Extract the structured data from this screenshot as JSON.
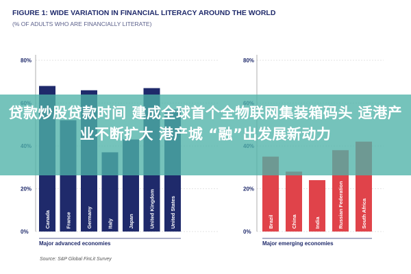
{
  "headline": "贷款炒股贷款时间 建成全球首个全物联网集装箱码头 适港产业不断扩大 港产城 “融”出发展新动力",
  "chart_data": {
    "title": "FIGURE 1: WIDE VARIATION IN FINANCIAL LITERACY AROUND THE WORLD",
    "subtitle": "(% OF ADULTS WHO ARE FINANCIALLY LITERATE)",
    "source": "Source: S&P Global FinLit Survey",
    "type": "bar",
    "ylim": [
      0,
      80
    ],
    "ticks": [
      "0%",
      "20%",
      "40%",
      "60%",
      "80%"
    ],
    "tick_values": [
      0,
      20,
      40,
      60,
      80
    ],
    "colors": {
      "advanced": "#1f2a6b",
      "emerging": "#e0434a",
      "text": "#1f2a6b",
      "grid": "#c8c8c8"
    },
    "panels": [
      {
        "group_label": "Major advanced economies",
        "categories": [
          "Canada",
          "France",
          "Germany",
          "Italy",
          "Japan",
          "United Kingdom",
          "United States"
        ],
        "values": [
          68,
          52,
          66,
          37,
          43,
          67,
          57
        ]
      },
      {
        "group_label": "Major emerging economies",
        "categories": [
          "Brazil",
          "China",
          "India",
          "Russian Federation",
          "South Africa"
        ],
        "values": [
          35,
          28,
          24,
          38,
          42
        ]
      }
    ]
  }
}
